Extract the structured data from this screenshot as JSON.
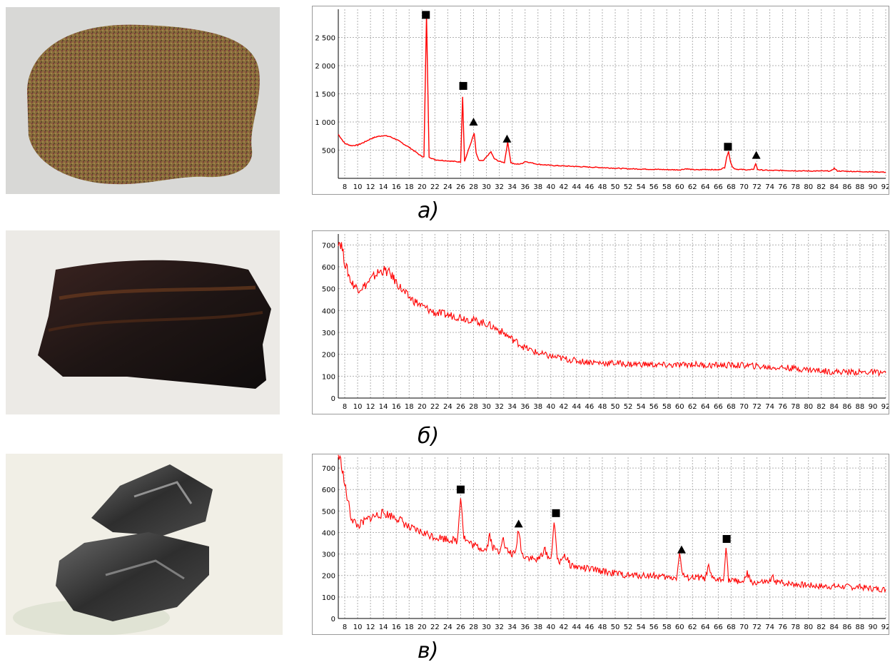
{
  "panels": [
    {
      "caption": "а)"
    },
    {
      "caption": "б)"
    },
    {
      "caption": "в)"
    }
  ],
  "colors": {
    "trace": "#ff0000",
    "grid": "#b0b0b0",
    "marker": "#000000"
  },
  "chart_data": [
    {
      "type": "line",
      "title": "",
      "xlabel": "",
      "ylabel": "",
      "xlim": [
        7,
        92
      ],
      "ylim": [
        0,
        3000
      ],
      "xticks": [
        8,
        10,
        12,
        14,
        16,
        18,
        20,
        22,
        24,
        26,
        28,
        30,
        32,
        34,
        36,
        38,
        40,
        42,
        44,
        46,
        48,
        50,
        52,
        54,
        56,
        58,
        60,
        62,
        64,
        66,
        68,
        70,
        72,
        74,
        76,
        78,
        80,
        82,
        84,
        86,
        88,
        90,
        92
      ],
      "yticks": [
        500,
        1000,
        1500,
        2000,
        2500
      ],
      "ytick_labels": [
        "500",
        "1 000",
        "1 500",
        "2 000",
        "2 500"
      ],
      "grid": true,
      "series": [
        {
          "x": [
            7,
            7.5,
            8,
            9,
            10,
            11,
            12,
            13,
            14,
            15,
            16,
            17,
            18,
            19,
            19.8,
            20.3,
            20.7,
            21.1,
            21.6,
            22,
            23,
            24,
            25,
            26,
            26.3,
            26.6,
            26.9,
            27.2,
            27.5,
            27.8,
            28.1,
            28.4,
            28.8,
            29.5,
            30.3,
            30.7,
            31.2,
            32,
            32.8,
            33.3,
            33.8,
            34.5,
            35.5,
            36,
            38,
            40,
            42,
            44,
            46,
            48,
            50,
            52,
            54,
            56,
            58,
            60,
            61,
            62,
            63,
            64,
            65,
            66,
            67,
            67.3,
            67.6,
            67.9,
            68.2,
            68.6,
            69,
            70,
            71,
            71.5,
            71.8,
            72.1,
            72.5,
            74,
            76,
            78,
            80,
            82,
            83.5,
            84,
            84.5,
            86,
            88,
            90,
            92
          ],
          "y": [
            780,
            700,
            620,
            580,
            590,
            640,
            700,
            740,
            760,
            740,
            690,
            620,
            550,
            470,
            400,
            380,
            2900,
            380,
            350,
            330,
            320,
            310,
            300,
            290,
            1450,
            300,
            400,
            500,
            600,
            700,
            800,
            450,
            320,
            310,
            420,
            470,
            350,
            300,
            280,
            650,
            280,
            250,
            260,
            300,
            250,
            230,
            220,
            210,
            200,
            190,
            180,
            170,
            165,
            160,
            155,
            150,
            170,
            155,
            150,
            160,
            155,
            150,
            190,
            380,
            470,
            300,
            200,
            170,
            160,
            155,
            150,
            165,
            260,
            160,
            150,
            140,
            140,
            135,
            130,
            130,
            130,
            180,
            130,
            125,
            120,
            115,
            110
          ]
        }
      ],
      "markers": [
        {
          "shape": "square",
          "x": 20.6,
          "y": 2900
        },
        {
          "shape": "square",
          "x": 26.4,
          "y": 1640
        },
        {
          "shape": "triangle",
          "x": 28.0,
          "y": 1000
        },
        {
          "shape": "triangle",
          "x": 33.2,
          "y": 700
        },
        {
          "shape": "square",
          "x": 67.5,
          "y": 560
        },
        {
          "shape": "triangle",
          "x": 71.9,
          "y": 410
        }
      ]
    },
    {
      "type": "line",
      "title": "",
      "xlabel": "",
      "ylabel": "",
      "xlim": [
        7,
        92
      ],
      "ylim": [
        0,
        750
      ],
      "xticks": [
        8,
        10,
        12,
        14,
        16,
        18,
        20,
        22,
        24,
        26,
        28,
        30,
        32,
        34,
        36,
        38,
        40,
        42,
        44,
        46,
        48,
        50,
        52,
        54,
        56,
        58,
        60,
        62,
        64,
        66,
        68,
        70,
        72,
        74,
        76,
        78,
        80,
        82,
        84,
        86,
        88,
        90,
        92
      ],
      "yticks": [
        0,
        100,
        200,
        300,
        400,
        500,
        600,
        700
      ],
      "ytick_labels": [
        "0",
        "100",
        "200",
        "300",
        "400",
        "500",
        "600",
        "700"
      ],
      "grid": true,
      "series": [
        {
          "x": [
            7,
            7.5,
            8,
            9,
            10,
            11,
            12,
            13,
            14,
            15,
            16,
            17,
            18,
            20,
            22,
            24,
            26,
            28,
            30,
            32,
            34,
            36,
            38,
            40,
            42,
            44,
            46,
            48,
            50,
            52,
            54,
            56,
            58,
            60,
            62,
            64,
            66,
            68,
            70,
            72,
            74,
            76,
            78,
            80,
            82,
            84,
            86,
            88,
            90,
            92
          ],
          "y": [
            720,
            700,
            620,
            530,
            500,
            510,
            540,
            570,
            585,
            570,
            530,
            490,
            460,
            420,
            390,
            380,
            370,
            355,
            340,
            310,
            270,
            230,
            205,
            190,
            180,
            170,
            165,
            160,
            160,
            155,
            155,
            152,
            150,
            150,
            155,
            150,
            150,
            150,
            150,
            145,
            140,
            140,
            135,
            130,
            125,
            120,
            120,
            118,
            118,
            115
          ]
        }
      ],
      "markers": []
    },
    {
      "type": "line",
      "title": "",
      "xlabel": "",
      "ylabel": "",
      "xlim": [
        7,
        92
      ],
      "ylim": [
        0,
        750
      ],
      "xticks": [
        8,
        10,
        12,
        14,
        16,
        18,
        20,
        22,
        24,
        26,
        28,
        30,
        32,
        34,
        36,
        38,
        40,
        42,
        44,
        46,
        48,
        50,
        52,
        54,
        56,
        58,
        60,
        62,
        64,
        66,
        68,
        70,
        72,
        74,
        76,
        78,
        80,
        82,
        84,
        86,
        88,
        90,
        92
      ],
      "yticks": [
        0,
        100,
        200,
        300,
        400,
        500,
        600,
        700
      ],
      "ytick_labels": [
        "0",
        "100",
        "200",
        "300",
        "400",
        "500",
        "600",
        "700"
      ],
      "grid": true,
      "series": [
        {
          "x": [
            7,
            7.5,
            8,
            9,
            10,
            11,
            12,
            13,
            14,
            15,
            16,
            17,
            18,
            20,
            22,
            24,
            25.5,
            26,
            26.5,
            27,
            28,
            29,
            30,
            30.5,
            31,
            32,
            32.5,
            33,
            34,
            34.5,
            35,
            35.5,
            36,
            37,
            38,
            39,
            40,
            40.5,
            41,
            41.5,
            42,
            43,
            44,
            46,
            48,
            50,
            52,
            54,
            56,
            58,
            59.5,
            60,
            60.5,
            61,
            62,
            63,
            64,
            64.5,
            65,
            66,
            66.8,
            67.2,
            67.6,
            68,
            69,
            70,
            70.5,
            71,
            72,
            74,
            74.5,
            75,
            76,
            78,
            80,
            82,
            84,
            86,
            88,
            90,
            92
          ],
          "y": [
            760,
            720,
            620,
            470,
            430,
            450,
            470,
            480,
            490,
            480,
            470,
            450,
            420,
            400,
            380,
            370,
            360,
            580,
            380,
            360,
            340,
            330,
            320,
            390,
            330,
            310,
            380,
            320,
            300,
            300,
            420,
            300,
            290,
            280,
            270,
            320,
            270,
            450,
            280,
            260,
            300,
            250,
            240,
            230,
            220,
            210,
            200,
            200,
            200,
            190,
            190,
            300,
            200,
            190,
            190,
            190,
            185,
            240,
            185,
            180,
            180,
            340,
            180,
            175,
            175,
            170,
            210,
            170,
            165,
            170,
            190,
            170,
            165,
            160,
            155,
            150,
            150,
            148,
            145,
            140,
            135
          ]
        }
      ],
      "markers": [
        {
          "shape": "square",
          "x": 26.0,
          "y": 600
        },
        {
          "shape": "triangle",
          "x": 35.0,
          "y": 440
        },
        {
          "shape": "square",
          "x": 40.8,
          "y": 490
        },
        {
          "shape": "triangle",
          "x": 60.3,
          "y": 320
        },
        {
          "shape": "square",
          "x": 67.3,
          "y": 370
        }
      ]
    }
  ]
}
